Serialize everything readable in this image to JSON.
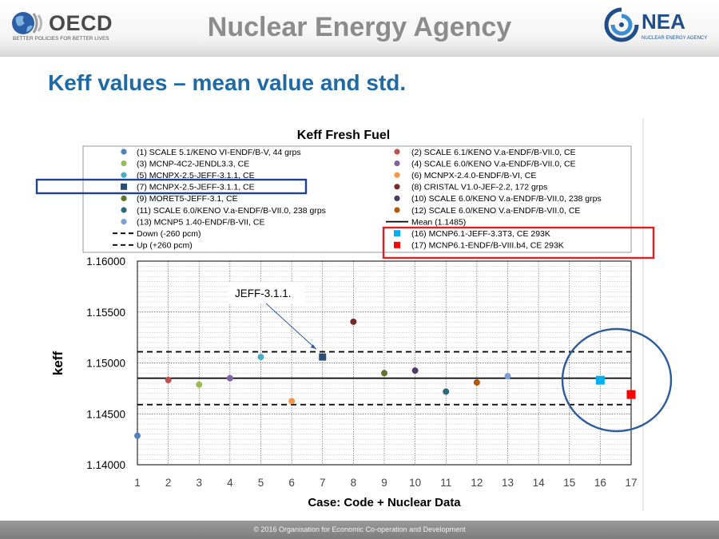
{
  "header": {
    "oecd_name": "OECD",
    "oecd_tagline": "BETTER POLICIES FOR BETTER LIVES",
    "title": "Nuclear Energy Agency",
    "nea_name": "NEA",
    "nea_tagline": "NUCLEAR ENERGY AGENCY"
  },
  "slide_title": "Keff values – mean value and std.",
  "footer": "© 2016 Organisation for Economic Co-operation and Development",
  "chart_data": {
    "type": "scatter",
    "title": "Keff Fresh Fuel",
    "xlabel": "Case: Code + Nuclear Data",
    "ylabel": "keff",
    "xlim": [
      1,
      17
    ],
    "ylim": [
      1.14,
      1.16
    ],
    "x_ticks": [
      1,
      2,
      3,
      4,
      5,
      6,
      7,
      8,
      9,
      10,
      11,
      12,
      13,
      14,
      15,
      16,
      17
    ],
    "y_ticks": [
      "1.14000",
      "1.14500",
      "1.15000",
      "1.15500",
      "1.16000"
    ],
    "grid": true,
    "legend_position": "top",
    "series": [
      {
        "name": "(1) SCALE 5.1/KENO VI-ENDF/B-V, 44 grps",
        "x": 1,
        "y": 1.14285,
        "color": "#4f81bd",
        "marker": "circle"
      },
      {
        "name": "(2) SCALE 6.1/KENO V.a-ENDF/B-VII.0, CE",
        "x": 2,
        "y": 1.14832,
        "color": "#c0504d",
        "marker": "circle"
      },
      {
        "name": "(3) MCNP-4C2-JENDL3.3, CE",
        "x": 3,
        "y": 1.14787,
        "color": "#9bbb59",
        "marker": "circle"
      },
      {
        "name": "(4) SCALE 6.0/KENO V.a-ENDF/B-VII.0, CE",
        "x": 4,
        "y": 1.1485,
        "color": "#8064a2",
        "marker": "circle"
      },
      {
        "name": "(5) MCNPX-2.5-JEFF-3.1.1, CE",
        "x": 5,
        "y": 1.15058,
        "color": "#4bacc6",
        "marker": "circle"
      },
      {
        "name": "(6) MCNPX-2.4.0-ENDF/B-VI, CE",
        "x": 6,
        "y": 1.14625,
        "color": "#f79646",
        "marker": "circle"
      },
      {
        "name": "(7) MCNPX-2.5-JEFF-3.1.1, CE",
        "x": 7,
        "y": 1.15058,
        "color": "#2c4d75",
        "marker": "square"
      },
      {
        "name": "(8) CRISTAL V1.0-JEF-2.2, 172 grps",
        "x": 8,
        "y": 1.15405,
        "color": "#772c2a",
        "marker": "circle"
      },
      {
        "name": "(9) MORET5-JEFF-3.1, CE",
        "x": 9,
        "y": 1.149,
        "color": "#5f7530",
        "marker": "circle"
      },
      {
        "name": "(10) SCALE 6.0/KENO V.a-ENDF/B-VII.0, 238 grps",
        "x": 10,
        "y": 1.14925,
        "color": "#4d3b62",
        "marker": "circle"
      },
      {
        "name": "(11) SCALE 6.0/KENO V.a-ENDF/B-VII.0, 238 grps",
        "x": 11,
        "y": 1.14718,
        "color": "#276a7c",
        "marker": "circle"
      },
      {
        "name": "(12) SCALE 6.0/KENO V.a-ENDF/B-VII.0, CE",
        "x": 12,
        "y": 1.14808,
        "color": "#b65708",
        "marker": "circle"
      },
      {
        "name": "(13) MCNP5 1.40-ENDF/B-VII, CE",
        "x": 13,
        "y": 1.1487,
        "color": "#7f9fd3",
        "marker": "circle"
      },
      {
        "name": "(16) MCNP6.1-JEFF-3.3T3, CE 293K",
        "x": 16,
        "y": 1.1483,
        "color": "#00b0f0",
        "marker": "square"
      },
      {
        "name": "(17) MCNP6.1-ENDF/B-VIII.b4, CE 293K",
        "x": 17,
        "y": 1.1469,
        "color": "#ff0000",
        "marker": "square"
      }
    ],
    "reference_lines": [
      {
        "name": "Mean (1.1485)",
        "y": 1.1485,
        "style": "solid"
      },
      {
        "name": "Down (-260 pcm)",
        "y": 1.1459,
        "style": "dashed"
      },
      {
        "name": "Up (+260 pcm)",
        "y": 1.1511,
        "style": "dashed"
      }
    ],
    "annotation": {
      "text": "JEFF-3.1.1.",
      "target_x": 7,
      "target_y": 1.15058
    },
    "highlight_colors": {
      "blue_box": "#1f3f99",
      "red_box": "#e02020",
      "circle": "#2e5b9a"
    }
  }
}
